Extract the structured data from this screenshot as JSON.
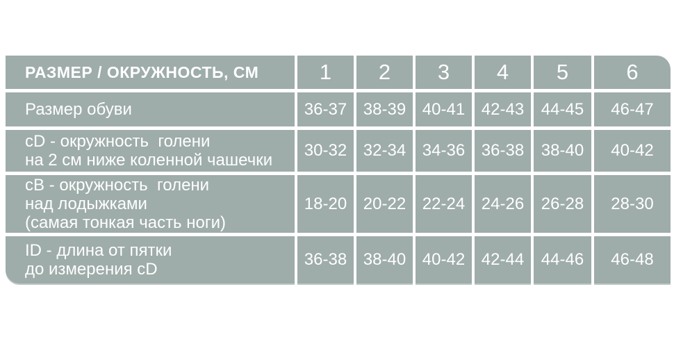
{
  "page": {
    "background": "#ffffff"
  },
  "table": {
    "colors": {
      "cell_background": "#9eacaa",
      "grid_separator": "#ffffff",
      "text": "#ffffff"
    },
    "header": {
      "label": "РАЗМЕР / ОКРУЖНОСТЬ, СМ",
      "columns": [
        "1",
        "2",
        "3",
        "4",
        "5",
        "6"
      ]
    },
    "rows": [
      {
        "label_lines": [
          "Размер обуви"
        ],
        "values": [
          "36-37",
          "38-39",
          "40-41",
          "42-43",
          "44-45",
          "46-47"
        ]
      },
      {
        "label_lines": [
          "cD - окружность  голени",
          "на 2 см ниже коленной чашечки"
        ],
        "values": [
          "30-32",
          "32-34",
          "34-36",
          "36-38",
          "38-40",
          "40-42"
        ]
      },
      {
        "label_lines": [
          "cB - окружность  голени",
          "над лодыжками",
          "(самая тонкая часть ноги)"
        ],
        "values": [
          "18-20",
          "20-22",
          "22-24",
          "24-26",
          "26-28",
          "28-30"
        ]
      },
      {
        "label_lines": [
          "ID - длина от пятки",
          "до измерения cD"
        ],
        "values": [
          "36-38",
          "38-40",
          "40-42",
          "42-44",
          "44-46",
          "46-48"
        ]
      }
    ]
  }
}
